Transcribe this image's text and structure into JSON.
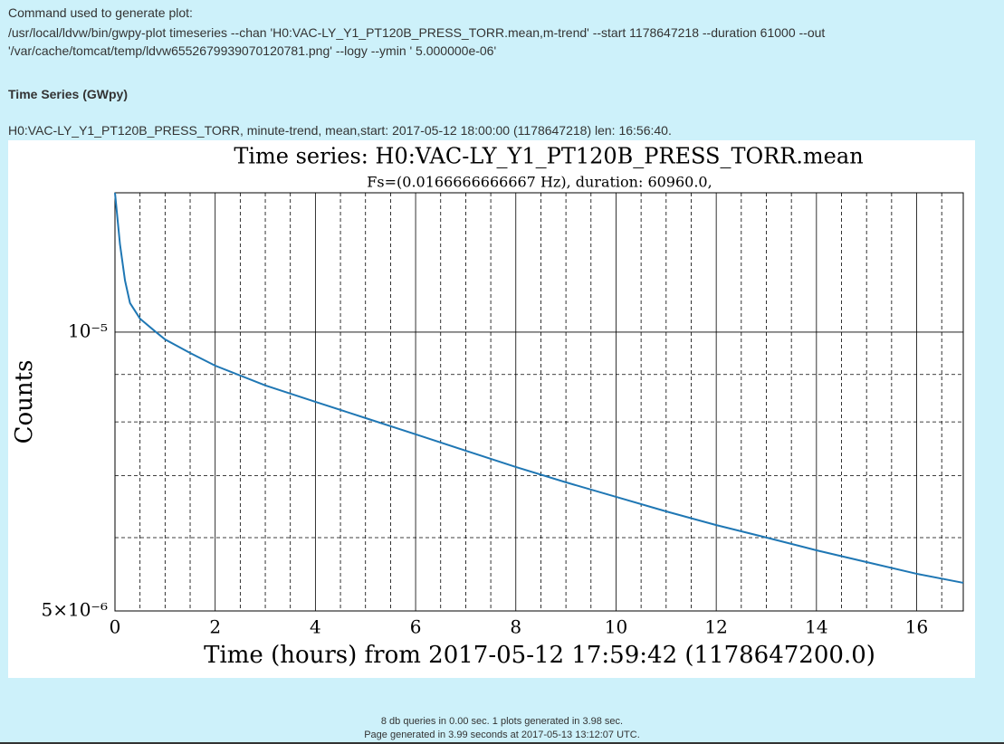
{
  "page": {
    "command_label": "Command used to generate plot:",
    "command": "/usr/local/ldvw/bin/gwpy-plot timeseries --chan 'H0:VAC-LY_Y1_PT120B_PRESS_TORR.mean,m-trend' --start 1178647218 --duration 61000 --out '/var/cache/tomcat/temp/ldvw6552679939070120781.png' --logy --ymin ' 5.000000e-06'",
    "section_title": "Time Series (GWpy)",
    "info": "H0:VAC-LY_Y1_PT120B_PRESS_TORR, minute-trend, mean,start: 2017-05-12 18:00:00 (1178647218) len: 16:56:40.",
    "footer": [
      "8 db queries in 0.00 sec. 1 plots generated in 3.98 sec.",
      "Page generated in 3.99 seconds at 2017-05-13 13:12:07 UTC."
    ]
  },
  "chart_data": {
    "type": "line",
    "title": "Time series:  H0:VAC-LY_Y1_PT120B_PRESS_TORR.mean",
    "subtitle": "Fs=(0.0166666666667 Hz), duration: 60960.0,",
    "xlabel": "Time (hours) from 2017-05-12 17:59:42 (1178647200.0)",
    "ylabel": "Counts",
    "color": "#1f77b4",
    "log_y": true,
    "grid": true,
    "xlim": [
      0,
      16.93
    ],
    "ylim": [
      5e-06,
      1.414e-05
    ],
    "xticks": [
      0,
      2,
      4,
      6,
      8,
      10,
      12,
      14,
      16
    ],
    "x_minor_ticks": [
      0.5,
      1,
      1.5,
      2.5,
      3,
      3.5,
      4.5,
      5,
      5.5,
      6.5,
      7,
      7.5,
      8.5,
      9,
      9.5,
      10.5,
      11,
      11.5,
      12.5,
      13,
      13.5,
      14.5,
      15,
      15.5,
      16.5
    ],
    "yticks": [
      {
        "value": 5e-06,
        "label": "5×10⁻⁶"
      },
      {
        "value": 1e-05,
        "label": "10⁻⁵"
      }
    ],
    "y_minor_ticks": [
      6e-06,
      7e-06,
      8e-06,
      9e-06
    ],
    "x": [
      0,
      0.1,
      0.2,
      0.3,
      0.5,
      0.8,
      1,
      1.5,
      2,
      3,
      4,
      5,
      6,
      7,
      8,
      9,
      10,
      11,
      12,
      13,
      14,
      15,
      16,
      16.93
    ],
    "values": [
      1.414e-05,
      1.244e-05,
      1.137e-05,
      1.075e-05,
      1.034e-05,
      1.002e-05,
      9.82e-06,
      9.495e-06,
      9.2e-06,
      8.76e-06,
      8.41e-06,
      8.077e-06,
      7.757e-06,
      7.447e-06,
      7.152e-06,
      6.884e-06,
      6.64e-06,
      6.404e-06,
      6.19e-06,
      6.001e-06,
      5.814e-06,
      5.646e-06,
      5.484e-06,
      5.362e-06
    ]
  }
}
